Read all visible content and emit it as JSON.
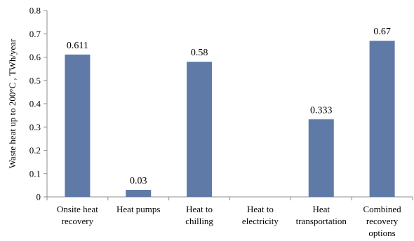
{
  "chart_data": {
    "type": "bar",
    "categories": [
      [
        "Onsite heat",
        "recovery"
      ],
      [
        "Heat pumps"
      ],
      [
        "Heat to",
        "chilling"
      ],
      [
        "Heat to",
        "electricity"
      ],
      [
        "Heat",
        "transportation"
      ],
      [
        "Combined",
        "recovery",
        "options"
      ]
    ],
    "values": [
      0.611,
      0.03,
      0.58,
      0,
      0.333,
      0.67
    ],
    "data_labels": [
      "0.611",
      "0.03",
      "0.58",
      "",
      "0.333",
      "0.67"
    ],
    "ylabel": "Waste heat up to 200°C , TWh/year",
    "ylim": [
      0,
      0.8
    ],
    "yticks": [
      "0",
      "0.1",
      "0.2",
      "0.3",
      "0.4",
      "0.5",
      "0.6",
      "0.7",
      "0.8"
    ],
    "bar_color": "#5f7aa6",
    "axis_color": "#8c8c8c",
    "grid": false
  }
}
